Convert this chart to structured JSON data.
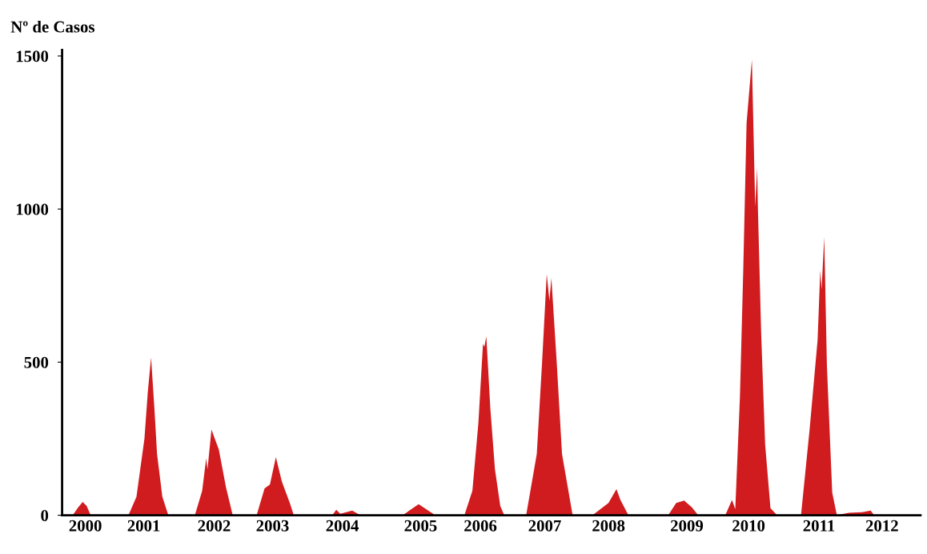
{
  "chart_data": {
    "type": "area",
    "ylabel": "Nº de Casos",
    "x": [
      1999.65,
      1999.81,
      1999.89,
      1999.96,
      2000.02,
      2000.08,
      2000.65,
      2000.77,
      2000.89,
      2000.94,
      2000.99,
      2001.04,
      2001.08,
      2001.16,
      2001.25,
      2001.65,
      2001.76,
      2001.82,
      2001.84,
      2001.9,
      2001.95,
      2002.01,
      2002.12,
      2002.22,
      2002.58,
      2002.7,
      2002.78,
      2002.87,
      2002.96,
      2003.08,
      2003.14,
      2003.72,
      2003.78,
      2003.84,
      2004.02,
      2004.14,
      2004.78,
      2005.02,
      2005.27,
      2005.71,
      2005.83,
      2005.92,
      2005.99,
      2006.01,
      2006.04,
      2006.1,
      2006.17,
      2006.25,
      2006.31,
      2006.64,
      2006.8,
      2006.88,
      2006.95,
      2006.99,
      2007.02,
      2007.1,
      2007.18,
      2007.3,
      2007.34,
      2007.64,
      2007.88,
      2008.0,
      2008.06,
      2008.18,
      2008.78,
      2008.9,
      2009.02,
      2009.14,
      2009.23,
      2009.64,
      2009.74,
      2009.79,
      2009.86,
      2009.91,
      2009.96,
      2010.04,
      2010.09,
      2010.12,
      2010.13,
      2010.18,
      2010.24,
      2010.32,
      2010.42,
      2010.78,
      2010.91,
      2011.03,
      2011.07,
      2011.09,
      2011.13,
      2011.17,
      2011.25,
      2011.32,
      2011.5,
      2011.7,
      2011.83,
      2011.88,
      2012.58
    ],
    "series": [
      {
        "color": "#d01c1f",
        "values": [
          0,
          0,
          25,
          43,
          30,
          0,
          0,
          60,
          250,
          400,
          515,
          350,
          200,
          60,
          0,
          0,
          80,
          186,
          150,
          280,
          250,
          215,
          90,
          0,
          0,
          88,
          100,
          190,
          110,
          40,
          0,
          0,
          18,
          5,
          15,
          0,
          0,
          36,
          0,
          0,
          80,
          300,
          560,
          550,
          584,
          350,
          150,
          30,
          0,
          0,
          200,
          500,
          788,
          700,
          775,
          500,
          200,
          50,
          0,
          0,
          40,
          85,
          50,
          0,
          0,
          40,
          48,
          25,
          0,
          0,
          50,
          20,
          386,
          800,
          1281,
          1488,
          1008,
          1135,
          1008,
          593,
          230,
          23,
          0,
          0,
          281,
          573,
          800,
          736,
          908,
          489,
          74,
          0,
          8,
          10,
          15,
          0,
          0
        ]
      }
    ],
    "xlim": [
      1999.65,
      2012.58
    ],
    "xticks": [
      {
        "value": 2000.0,
        "label": "2000"
      },
      {
        "value": 2000.88,
        "label": "2001"
      },
      {
        "value": 2001.94,
        "label": "2002"
      },
      {
        "value": 2002.82,
        "label": "2003"
      },
      {
        "value": 2003.87,
        "label": "2004"
      },
      {
        "value": 2005.05,
        "label": "2005"
      },
      {
        "value": 2005.95,
        "label": "2006"
      },
      {
        "value": 2006.92,
        "label": "2007"
      },
      {
        "value": 2007.88,
        "label": "2008"
      },
      {
        "value": 2009.06,
        "label": "2009"
      },
      {
        "value": 2009.99,
        "label": "2010"
      },
      {
        "value": 2011.05,
        "label": "2011"
      },
      {
        "value": 2012.0,
        "label": "2012"
      }
    ],
    "ylim": [
      0,
      1520
    ],
    "yticks": [
      0,
      500,
      1000,
      1500
    ],
    "grid": false,
    "legend": false
  }
}
